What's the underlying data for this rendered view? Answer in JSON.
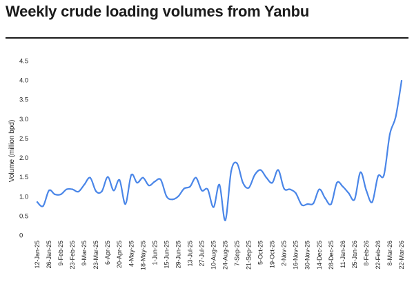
{
  "title": "Weekly crude loading volumes from Yanbu",
  "chart_data": {
    "type": "line",
    "title": "Weekly crude loading volumes from Yanbu",
    "xlabel": "",
    "ylabel": "Volume (million bpd)",
    "ylim": [
      0,
      4.5
    ],
    "yticks": [
      0,
      0.5,
      1.0,
      1.5,
      2.0,
      2.5,
      3.0,
      3.5,
      4.0,
      4.5
    ],
    "ytick_labels": [
      "0",
      "0.5",
      "1.0",
      "1.5",
      "2.0",
      "2.5",
      "3.0",
      "3.5",
      "4.0",
      "4.5"
    ],
    "xtick_labels": [
      "12-Jan-25",
      "26-Jan-25",
      "9-Feb-25",
      "23-Feb-25",
      "9-Mar-25",
      "23-Mar-25",
      "6-Apr-25",
      "20-Apr-25",
      "4-May-25",
      "18-May-25",
      "1-Jun-25",
      "15-Jun-25",
      "29-Jun-25",
      "13-Jul-25",
      "27-Jul-25",
      "10-Aug-25",
      "24-Aug-25",
      "7-Sep-25",
      "21-Sep-25",
      "5-Oct-25",
      "19-Oct-25",
      "2-Nov-25",
      "16-Nov-25",
      "30-Nov-25",
      "14-Dec-25",
      "28-Dec-25",
      "11-Jan-26",
      "25-Jan-26",
      "8-Feb-26",
      "22-Feb-26",
      "8-Mar-26",
      "22-Mar-26"
    ],
    "grid": false,
    "line_color": "#4a86e8",
    "series": [
      {
        "x": [
          "12-Jan-25",
          "19-Jan-25",
          "26-Jan-25",
          "2-Feb-25",
          "9-Feb-25",
          "16-Feb-25",
          "23-Feb-25",
          "2-Mar-25",
          "9-Mar-25",
          "16-Mar-25",
          "23-Mar-25",
          "30-Mar-25",
          "6-Apr-25",
          "13-Apr-25",
          "20-Apr-25",
          "27-Apr-25",
          "4-May-25",
          "11-May-25",
          "18-May-25",
          "25-May-25",
          "1-Jun-25",
          "8-Jun-25",
          "15-Jun-25",
          "22-Jun-25",
          "29-Jun-25",
          "6-Jul-25",
          "13-Jul-25",
          "20-Jul-25",
          "27-Jul-25",
          "3-Aug-25",
          "10-Aug-25",
          "17-Aug-25",
          "24-Aug-25",
          "31-Aug-25",
          "7-Sep-25",
          "14-Sep-25",
          "21-Sep-25",
          "28-Sep-25",
          "5-Oct-25",
          "12-Oct-25",
          "19-Oct-25",
          "26-Oct-25",
          "2-Nov-25",
          "9-Nov-25",
          "16-Nov-25",
          "23-Nov-25",
          "30-Nov-25",
          "7-Dec-25",
          "14-Dec-25",
          "21-Dec-25",
          "28-Dec-25",
          "4-Jan-26",
          "11-Jan-26",
          "18-Jan-26",
          "25-Jan-26",
          "1-Feb-26",
          "8-Feb-26",
          "15-Feb-26",
          "22-Feb-26",
          "1-Mar-26",
          "8-Mar-26",
          "15-Mar-26",
          "22-Mar-26"
        ],
        "values": [
          0.85,
          0.75,
          1.15,
          1.05,
          1.05,
          1.18,
          1.18,
          1.12,
          1.3,
          1.48,
          1.13,
          1.13,
          1.5,
          1.15,
          1.42,
          0.8,
          1.55,
          1.35,
          1.48,
          1.28,
          1.38,
          1.43,
          1.0,
          0.92,
          1.0,
          1.2,
          1.25,
          1.48,
          1.15,
          1.18,
          0.72,
          1.3,
          0.38,
          1.65,
          1.85,
          1.35,
          1.22,
          1.55,
          1.68,
          1.48,
          1.35,
          1.68,
          1.2,
          1.18,
          1.08,
          0.78,
          0.8,
          0.82,
          1.18,
          0.95,
          0.8,
          1.35,
          1.25,
          1.08,
          0.92,
          1.62,
          1.15,
          0.85,
          1.52,
          1.55,
          2.6,
          3.05,
          3.98
        ]
      }
    ]
  }
}
